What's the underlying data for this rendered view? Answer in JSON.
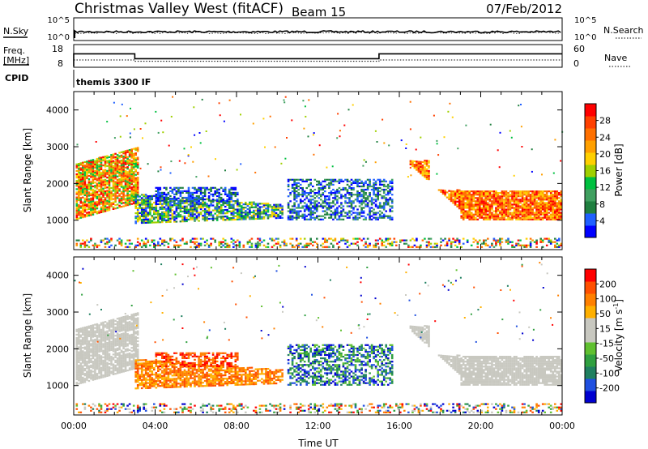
{
  "header": {
    "station": "Christmas Valley West (fitACF)",
    "beam": "Beam 15",
    "date": "07/Feb/2012"
  },
  "noise_panel": {
    "left_label": "N.Sky",
    "right_label": "N.Search",
    "left_ticks": [
      "10^5",
      "10^0"
    ],
    "right_ticks": [
      "10^5",
      "10^0"
    ]
  },
  "freq_panel": {
    "left_label_1": "Freq.",
    "left_label_2": "[MHz]",
    "right_label": "Nave",
    "left_ticks": [
      "18",
      "8"
    ],
    "right_ticks": [
      "60",
      "0"
    ],
    "freq_segments": [
      {
        "start_h": 0.0,
        "end_h": 3.0,
        "value": 14.5
      },
      {
        "start_h": 3.0,
        "end_h": 15.0,
        "value": 12.0
      },
      {
        "start_h": 15.0,
        "end_h": 24.0,
        "value": 14.5
      }
    ],
    "nave_segments": [
      {
        "start_h": 0.0,
        "end_h": 3.0,
        "value": 20
      },
      {
        "start_h": 3.0,
        "end_h": 15.0,
        "value": 16
      },
      {
        "start_h": 15.0,
        "end_h": 24.0,
        "value": 20
      }
    ]
  },
  "cpid": {
    "label": "CPID",
    "program": "themis 3300 IF"
  },
  "chart_data": [
    {
      "type": "heatmap",
      "name": "power",
      "ylabel": "Slant Range [km]",
      "xlabel": "",
      "ylim": [
        200,
        4500
      ],
      "yticks": [
        "4000",
        "3000",
        "2000",
        "1000"
      ],
      "colorbar_label": "Power [dB]",
      "colorbar_ticks": [
        "28",
        "24",
        "20",
        "16",
        "12",
        "8",
        "4"
      ],
      "colorbar_colors": [
        "#0000ff",
        "#2060ff",
        "#208040",
        "#40a060",
        "#00c040",
        "#a0d000",
        "#ffd000",
        "#ffa000",
        "#ff7000",
        "#ff4000",
        "#ff0000"
      ]
    },
    {
      "type": "heatmap",
      "name": "velocity",
      "ylabel": "Slant Range [km]",
      "xlabel": "Time UT",
      "ylim": [
        200,
        4500
      ],
      "yticks": [
        "4000",
        "3000",
        "2000",
        "1000"
      ],
      "xticks": [
        "00:00",
        "04:00",
        "08:00",
        "12:00",
        "16:00",
        "20:00",
        "00:00"
      ],
      "colorbar_label": "Velocity [m s",
      "colorbar_label_sup": "-1",
      "colorbar_label_end": "]",
      "colorbar_ticks": [
        "200",
        "100",
        "50",
        "15",
        "-15",
        "-50",
        "-100",
        "-200"
      ],
      "colorbar_colors": [
        "#0000d0",
        "#2050e0",
        "#208060",
        "#30a040",
        "#60c030",
        "#c8c8c0",
        "#c8c8c0",
        "#ffb000",
        "#ff8000",
        "#ff5000",
        "#ff0000"
      ]
    }
  ]
}
